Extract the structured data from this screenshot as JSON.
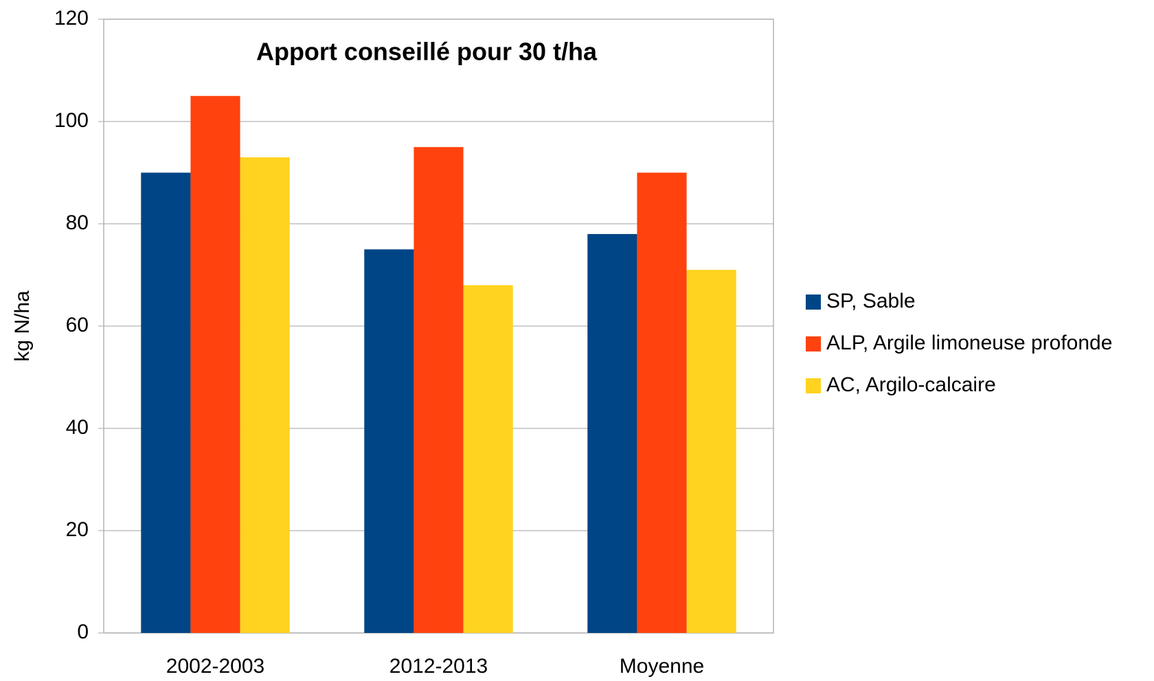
{
  "chart_data": {
    "type": "bar",
    "title": "Apport conseillé pour 30 t/ha",
    "y_label": "kg N/ha",
    "categories": [
      "2002-2003",
      "2012-2013",
      "Moyenne"
    ],
    "series": [
      {
        "name": "SP, Sable",
        "color": "#004586",
        "values": [
          90,
          75,
          78
        ]
      },
      {
        "name": "ALP, Argile limoneuse profonde",
        "color": "#ff420e",
        "values": [
          105,
          95,
          90
        ]
      },
      {
        "name": "AC, Argilo-calcaire",
        "color": "#ffd320",
        "values": [
          93,
          68,
          71
        ]
      }
    ],
    "ylim": [
      0,
      120
    ],
    "yticks": [
      0,
      20,
      40,
      60,
      80,
      100,
      120
    ],
    "grid": true,
    "legend": "right"
  }
}
